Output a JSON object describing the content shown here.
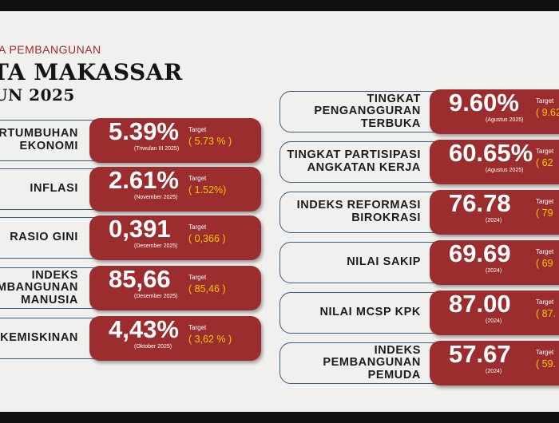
{
  "header": {
    "kicker": "A PEMBANGUNAN",
    "title_line1": "TA MAKASSAR",
    "title_line2": "UN 2025"
  },
  "colors": {
    "accent": "#9c2d2f",
    "target": "#f5c800",
    "frame": "#3a5f80"
  },
  "left_cards": [
    {
      "label": "ERTUMBUHAN\nEKONOMI",
      "value": "5.39%",
      "note": "(Triwulan III 2025)",
      "target_label": "Target",
      "target_value": "( 5.73 % )"
    },
    {
      "label": "INFLASI",
      "value": "2.61%",
      "note": "(November 2025)",
      "target_label": "Target",
      "target_value": "( 1.52%)"
    },
    {
      "label": "RASIO GINI",
      "value": "0,391",
      "note": "(Desember 2025)",
      "target_label": "Target",
      "target_value": "( 0,366 )"
    },
    {
      "label": "INDEKS\nPEMBANGUNAN\nMANUSIA",
      "value": "85,66",
      "note": "(Desember 2025)",
      "target_label": "Target",
      "target_value": "( 85,46 )"
    },
    {
      "label": "KEMISKINAN",
      "value": "4,43%",
      "note": "(Oktober 2025)",
      "target_label": "Target",
      "target_value": "( 3,62 % )"
    }
  ],
  "right_cards": [
    {
      "label": "TINGKAT\nPENGANGGURAN\nTERBUKA",
      "value": "9.60%",
      "note": "(Agustus 2025)",
      "target_label": "Target",
      "target_value": "( 9.62"
    },
    {
      "label": "TINGKAT PARTISIPASI\nANGKATAN KERJA",
      "value": "60.65%",
      "note": "(Agustus 2025)",
      "target_label": "Target",
      "target_value": "( 62"
    },
    {
      "label": "INDEKS REFORMASI\nBIROKRASI",
      "value": "76.78",
      "note": "(2024)",
      "target_label": "Target",
      "target_value": "( 79"
    },
    {
      "label": "NILAI SAKIP",
      "value": "69.69",
      "note": "(2024)",
      "target_label": "Target",
      "target_value": "( 69"
    },
    {
      "label": "NILAI MCSP KPK",
      "value": "87.00",
      "note": "(2024)",
      "target_label": "Target",
      "target_value": "( 87."
    },
    {
      "label": "INDEKS\nPEMBANGUNAN\nPEMUDA",
      "value": "57.67",
      "note": "(2024)",
      "target_label": "Target",
      "target_value": "( 59."
    }
  ]
}
